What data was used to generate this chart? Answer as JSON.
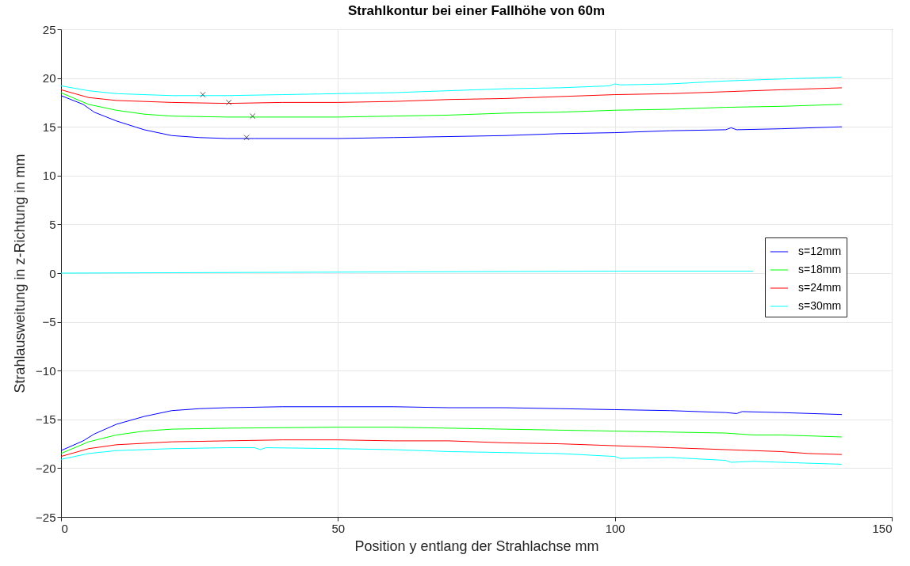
{
  "chart_data": {
    "type": "line",
    "title": "Strahlkontur bei einer Fallhöhe von 60m",
    "xlabel": "Position y entlang der Strahlachse mm",
    "ylabel": "Strahlausweitung in z-Richtung in mm",
    "xlim": [
      0,
      150
    ],
    "xticks": [
      0,
      50,
      100,
      150
    ],
    "ylim": [
      -25,
      25
    ],
    "yticks": [
      -25,
      -20,
      -15,
      -10,
      -5,
      0,
      5,
      10,
      15,
      20,
      25
    ],
    "grid": true,
    "legend": "right",
    "line_style": "solid",
    "marker": "none",
    "series": [
      {
        "name": "s=12mm",
        "color": "#0000ff",
        "x": [
          0,
          4,
          6,
          10,
          15,
          20,
          25,
          30,
          35,
          50,
          60,
          70,
          80,
          90,
          100,
          110,
          120,
          121,
          122,
          130,
          141
        ],
        "values": [
          18.2,
          17.3,
          16.5,
          15.6,
          14.7,
          14.1,
          13.9,
          13.8,
          13.8,
          13.8,
          13.9,
          14.0,
          14.1,
          14.3,
          14.4,
          14.6,
          14.7,
          14.9,
          14.7,
          14.8,
          15.0
        ]
      },
      {
        "name": "s=18mm",
        "color": "#00ff00",
        "x": [
          0,
          5,
          10,
          15,
          20,
          30,
          50,
          60,
          70,
          80,
          90,
          100,
          110,
          120,
          130,
          141
        ],
        "values": [
          18.5,
          17.3,
          16.7,
          16.3,
          16.1,
          16.0,
          16.0,
          16.1,
          16.2,
          16.4,
          16.5,
          16.7,
          16.8,
          17.0,
          17.1,
          17.3
        ]
      },
      {
        "name": "s=24mm",
        "color": "#ff0000",
        "x": [
          0,
          5,
          10,
          20,
          30,
          40,
          50,
          60,
          70,
          80,
          90,
          100,
          110,
          120,
          130,
          141
        ],
        "values": [
          18.8,
          18.0,
          17.7,
          17.5,
          17.4,
          17.5,
          17.5,
          17.6,
          17.8,
          17.9,
          18.1,
          18.3,
          18.4,
          18.6,
          18.8,
          19.0
        ]
      },
      {
        "name": "s=30mm",
        "color": "#00ffff",
        "x": [
          0,
          5,
          10,
          20,
          30,
          40,
          50,
          60,
          70,
          80,
          90,
          99,
          100,
          101,
          110,
          120,
          130,
          141
        ],
        "values": [
          19.2,
          18.7,
          18.4,
          18.2,
          18.2,
          18.3,
          18.4,
          18.5,
          18.7,
          18.9,
          19.0,
          19.2,
          19.4,
          19.3,
          19.4,
          19.7,
          19.9,
          20.1
        ]
      },
      {
        "color": "#0000ff",
        "x": [
          0,
          4,
          6,
          10,
          15,
          20,
          25,
          30,
          40,
          50,
          60,
          70,
          80,
          90,
          100,
          110,
          120,
          122,
          123,
          130,
          141
        ],
        "values": [
          -18.2,
          -17.2,
          -16.5,
          -15.5,
          -14.7,
          -14.1,
          -13.9,
          -13.8,
          -13.7,
          -13.7,
          -13.7,
          -13.8,
          -13.8,
          -13.9,
          -14.0,
          -14.1,
          -14.3,
          -14.4,
          -14.2,
          -14.3,
          -14.5
        ]
      },
      {
        "color": "#00ff00",
        "x": [
          0,
          5,
          10,
          15,
          20,
          30,
          50,
          60,
          70,
          80,
          90,
          100,
          110,
          120,
          125,
          130,
          141
        ],
        "values": [
          -18.5,
          -17.3,
          -16.6,
          -16.2,
          -16.0,
          -15.9,
          -15.8,
          -15.8,
          -15.9,
          -16.0,
          -16.1,
          -16.2,
          -16.3,
          -16.4,
          -16.6,
          -16.6,
          -16.8
        ]
      },
      {
        "color": "#ff0000",
        "x": [
          0,
          5,
          10,
          20,
          30,
          40,
          50,
          60,
          70,
          80,
          90,
          100,
          110,
          120,
          130,
          135,
          141
        ],
        "values": [
          -18.8,
          -18.0,
          -17.6,
          -17.3,
          -17.2,
          -17.1,
          -17.1,
          -17.2,
          -17.2,
          -17.4,
          -17.5,
          -17.7,
          -17.9,
          -18.1,
          -18.3,
          -18.5,
          -18.6
        ]
      },
      {
        "color": "#00ffff",
        "x": [
          0,
          5,
          10,
          20,
          30,
          35,
          36,
          37,
          50,
          60,
          70,
          80,
          90,
          100,
          101,
          110,
          120,
          121,
          125,
          130,
          141
        ],
        "values": [
          -19.1,
          -18.5,
          -18.2,
          -18.0,
          -17.9,
          -17.9,
          -18.1,
          -17.9,
          -18.0,
          -18.1,
          -18.3,
          -18.4,
          -18.5,
          -18.8,
          -19.0,
          -18.9,
          -19.2,
          -19.4,
          -19.3,
          -19.4,
          -19.6
        ]
      },
      {
        "color": "#00ffff",
        "x": [
          0,
          50,
          100,
          125
        ],
        "values": [
          0,
          0.1,
          0.2,
          0.2
        ]
      },
      {
        "type": "scatter",
        "marker": "cross",
        "color": "#000000",
        "x": [
          25.6,
          30.3,
          34.6,
          33.5
        ],
        "values": [
          18.3,
          17.5,
          16.1,
          13.9
        ]
      }
    ]
  }
}
